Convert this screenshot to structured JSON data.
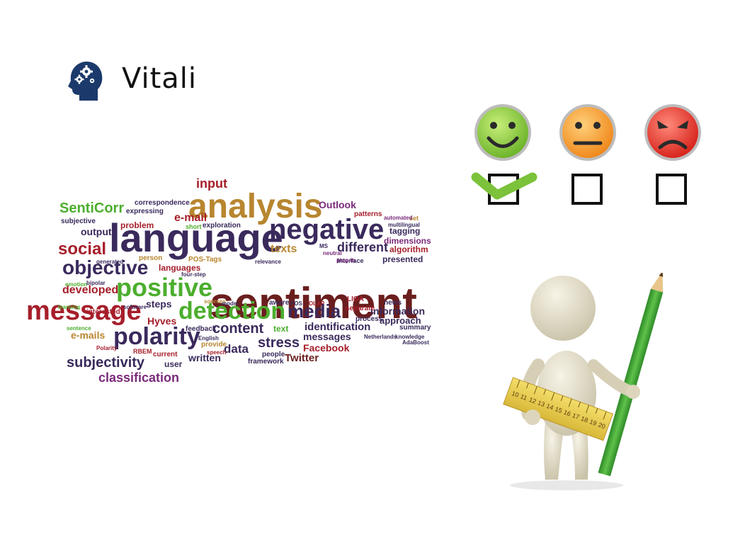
{
  "header": {
    "title": "Vitali",
    "icon": "head-gears-icon",
    "icon_color": "#1b3a6b"
  },
  "word_cloud": {
    "words": [
      {
        "text": "sentiment",
        "color": "#6b1e1e"
      },
      {
        "text": "language",
        "color": "#3a2a5c"
      },
      {
        "text": "analysis",
        "color": "#b8862f"
      },
      {
        "text": "negative",
        "color": "#3a2a5c"
      },
      {
        "text": "message",
        "color": "#a61e2a"
      },
      {
        "text": "positive",
        "color": "#4cae2e"
      },
      {
        "text": "detection",
        "color": "#4cae2e"
      },
      {
        "text": "objective",
        "color": "#3a2a5c"
      },
      {
        "text": "polarity",
        "color": "#3a2a5c"
      },
      {
        "text": "media",
        "color": "#3a2a5c"
      },
      {
        "text": "social",
        "color": "#a61e2a"
      },
      {
        "text": "SentiCorr",
        "color": "#4cae2e"
      },
      {
        "text": "input",
        "color": "#a61e2a"
      },
      {
        "text": "subjectivity",
        "color": "#3a2a5c"
      },
      {
        "text": "classification",
        "color": "#7a2a7a"
      },
      {
        "text": "different",
        "color": "#3a2a5c"
      },
      {
        "text": "content",
        "color": "#3a2a5c"
      },
      {
        "text": "stress",
        "color": "#3a2a5c"
      },
      {
        "text": "Outlook",
        "color": "#7a2a7a"
      },
      {
        "text": "developed",
        "color": "#a61e2a"
      },
      {
        "text": "e-mail",
        "color": "#a61e2a"
      },
      {
        "text": "texts",
        "color": "#b8862f"
      },
      {
        "text": "identification",
        "color": "#3a2a5c"
      },
      {
        "text": "data",
        "color": "#3a2a5c"
      },
      {
        "text": "e-mails",
        "color": "#b8862f"
      },
      {
        "text": "Hyves",
        "color": "#a61e2a"
      },
      {
        "text": "steps",
        "color": "#3a2a5c"
      },
      {
        "text": "messages",
        "color": "#3a2a5c"
      },
      {
        "text": "information",
        "color": "#3a2a5c"
      },
      {
        "text": "Facebook",
        "color": "#a61e2a"
      },
      {
        "text": "Twitter",
        "color": "#6b1e1e"
      },
      {
        "text": "written",
        "color": "#3a2a5c"
      },
      {
        "text": "approach",
        "color": "#3a2a5c"
      },
      {
        "text": "output",
        "color": "#3a2a5c"
      },
      {
        "text": "languages",
        "color": "#a61e2a"
      },
      {
        "text": "user",
        "color": "#3a2a5c"
      },
      {
        "text": "text",
        "color": "#4cae2e"
      },
      {
        "text": "tagging",
        "color": "#3a2a5c"
      },
      {
        "text": "presented",
        "color": "#3a2a5c"
      },
      {
        "text": "algorithm",
        "color": "#a61e2a"
      },
      {
        "text": "dimensions",
        "color": "#7a2a7a"
      },
      {
        "text": "problem",
        "color": "#a61e2a"
      },
      {
        "text": "exploration",
        "color": "#3a2a5c"
      },
      {
        "text": "patterns",
        "color": "#a61e2a"
      },
      {
        "text": "framework",
        "color": "#3a2a5c"
      },
      {
        "text": "expressing",
        "color": "#3a2a5c"
      },
      {
        "text": "correspondence",
        "color": "#3a2a5c"
      },
      {
        "text": "subjective",
        "color": "#3a2a5c"
      },
      {
        "text": "person",
        "color": "#b8862f"
      },
      {
        "text": "POS-Tags",
        "color": "#b8862f"
      },
      {
        "text": "short",
        "color": "#4cae2e"
      },
      {
        "text": "summary",
        "color": "#3a2a5c"
      },
      {
        "text": "LIGA",
        "color": "#a61e2a"
      },
      {
        "text": "feedback",
        "color": "#3a2a5c"
      },
      {
        "text": "aware",
        "color": "#3a2a5c"
      },
      {
        "text": "news",
        "color": "#3a2a5c"
      },
      {
        "text": "process",
        "color": "#3a2a5c"
      },
      {
        "text": "separate",
        "color": "#a61e2a"
      },
      {
        "text": "current",
        "color": "#a61e2a"
      },
      {
        "text": "provide",
        "color": "#b8862f"
      },
      {
        "text": "interested",
        "color": "#a61e2a"
      },
      {
        "text": "learning",
        "color": "#4cae2e"
      },
      {
        "text": "software",
        "color": "#3a2a5c"
      },
      {
        "text": "people",
        "color": "#3a2a5c"
      },
      {
        "text": "Interface",
        "color": "#3a2a5c"
      },
      {
        "text": "neutral",
        "color": "#7a2a7a"
      },
      {
        "text": "set",
        "color": "#b8862f"
      },
      {
        "text": "multilingual",
        "color": "#3a2a5c"
      },
      {
        "text": "automated",
        "color": "#7a2a7a"
      },
      {
        "text": "RBEM",
        "color": "#a61e2a"
      },
      {
        "text": "speech",
        "color": "#a61e2a"
      },
      {
        "text": "English",
        "color": "#3a2a5c"
      },
      {
        "text": "sources",
        "color": "#b8862f"
      },
      {
        "text": "model",
        "color": "#3a2a5c"
      },
      {
        "text": "relevance",
        "color": "#3a2a5c"
      },
      {
        "text": "Netherlands",
        "color": "#3a2a5c"
      },
      {
        "text": "knowledge",
        "color": "#3a2a5c"
      },
      {
        "text": "AdaBoost",
        "color": "#3a2a5c"
      },
      {
        "text": "four-step",
        "color": "#3a2a5c"
      },
      {
        "text": "generated",
        "color": "#3a2a5c"
      },
      {
        "text": "bipolar",
        "color": "#3a2a5c"
      },
      {
        "text": "emotion",
        "color": "#4cae2e"
      },
      {
        "text": "sentence",
        "color": "#4cae2e"
      },
      {
        "text": "Polarity",
        "color": "#a61e2a"
      },
      {
        "text": "plug-in",
        "color": "#7a2a7a"
      },
      {
        "text": "MS",
        "color": "#3a2a5c"
      },
      {
        "text": "OLAP",
        "color": "#a61e2a"
      },
      {
        "text": "POS",
        "color": "#3a2a5c"
      }
    ]
  },
  "rating": {
    "faces": [
      {
        "mood": "happy-face-icon",
        "color": "#8ed04a",
        "checked": true
      },
      {
        "mood": "neutral-face-icon",
        "color": "#f5a73a",
        "checked": false
      },
      {
        "mood": "angry-face-icon",
        "color": "#e8413c",
        "checked": false
      }
    ],
    "check_color": "#7cc23a"
  },
  "figure": {
    "icon": "person-with-pencil-and-ruler-icon",
    "ruler_numbers": [
      "10",
      "11",
      "12",
      "13",
      "14",
      "15",
      "16",
      "17",
      "18",
      "19",
      "20"
    ]
  }
}
